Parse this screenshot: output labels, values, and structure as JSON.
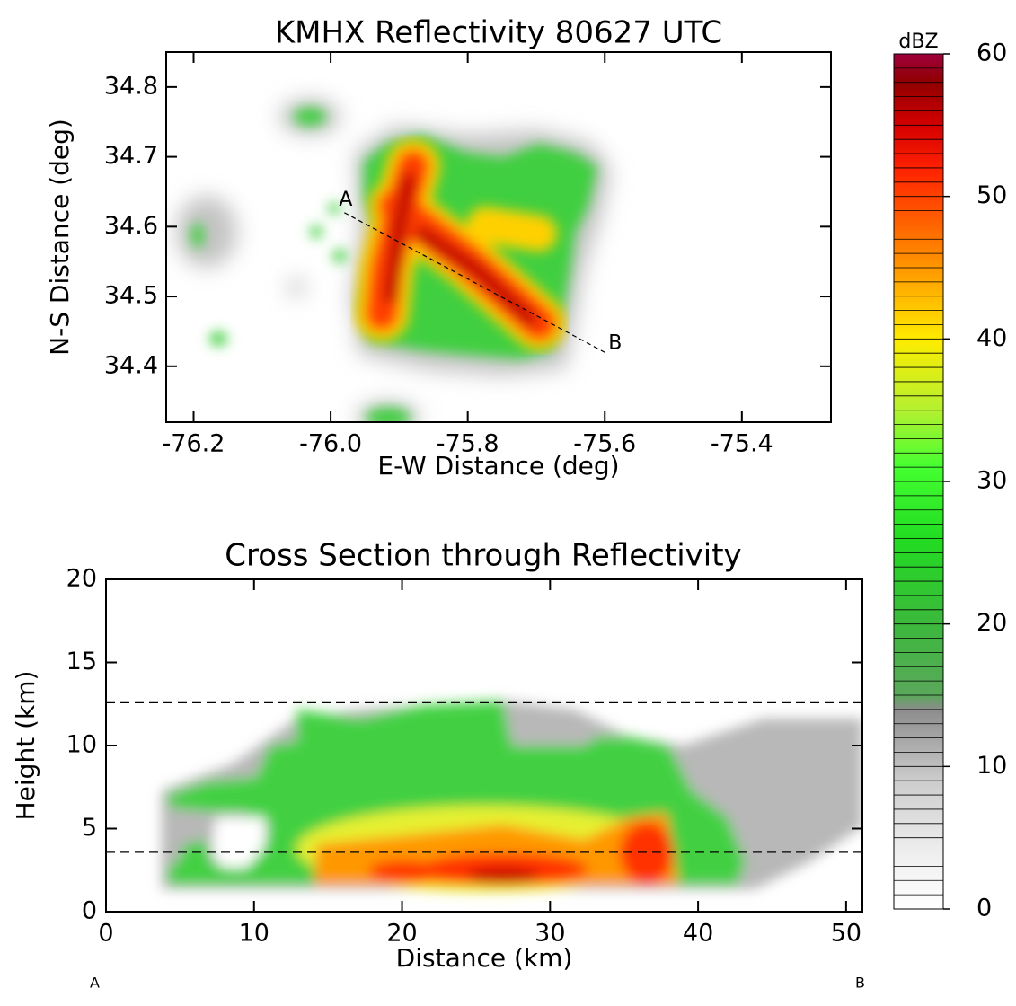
{
  "chart_data": [
    {
      "type": "heatmap",
      "title": "KMHX Reflectivity 80627 UTC",
      "x_label": "E-W Distance (deg)",
      "y_label": "N-S Distance (deg)",
      "xlim": [
        -76.24,
        -75.27
      ],
      "ylim": [
        34.32,
        34.85
      ],
      "xticks": [
        -76.2,
        {
          "value": -76,
          "label": "-76.0"
        },
        -75.8,
        -75.6,
        -75.4
      ],
      "yticks": [
        34.4,
        34.5,
        34.6,
        34.7,
        34.8
      ],
      "section_line": {
        "start": [
          -75.98,
          34.62
        ],
        "end": [
          -75.6,
          34.42
        ],
        "start_label": "A",
        "end_label": "B"
      }
    },
    {
      "type": "heatmap",
      "title": "Cross Section through Reflectivity",
      "x_label": "Distance (km)",
      "y_label": "Height (km)",
      "xlim": [
        0,
        51.1
      ],
      "ylim": [
        0,
        20
      ],
      "xticks": [
        0,
        10,
        20,
        30,
        40,
        50
      ],
      "yticks": [
        0,
        5,
        10,
        15,
        20
      ],
      "reference_lines": [
        3.6,
        12.6
      ]
    },
    {
      "type": "colorbar",
      "label": "dBZ",
      "ylim": [
        0,
        60
      ],
      "yticks": [
        0,
        10,
        20,
        30,
        40,
        50,
        60
      ],
      "color_stops": [
        {
          "value": 0,
          "color": "#ffffff"
        },
        {
          "value": 4,
          "color": "#eeeeee"
        },
        {
          "value": 9,
          "color": "#cccccc"
        },
        {
          "value": 14,
          "color": "#8c8c8c"
        },
        {
          "value": 15,
          "color": "#5aa85a"
        },
        {
          "value": 20,
          "color": "#3cb83c"
        },
        {
          "value": 26,
          "color": "#22dc22"
        },
        {
          "value": 31,
          "color": "#44ff30"
        },
        {
          "value": 35,
          "color": "#b4f030"
        },
        {
          "value": 40,
          "color": "#ffec00"
        },
        {
          "value": 44,
          "color": "#ffa800"
        },
        {
          "value": 48,
          "color": "#ff6400"
        },
        {
          "value": 52,
          "color": "#ff2000"
        },
        {
          "value": 55,
          "color": "#d40000"
        },
        {
          "value": 58,
          "color": "#900000"
        },
        {
          "value": 60,
          "color": "#a0003c"
        }
      ]
    }
  ]
}
